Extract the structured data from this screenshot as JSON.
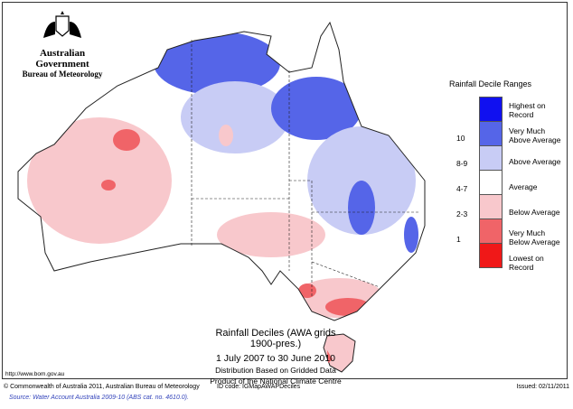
{
  "header": {
    "government": "Australian Government",
    "agency": "Bureau of Meteorology"
  },
  "legend": {
    "title": "Rainfall Decile Ranges",
    "items": [
      {
        "label": "Highest on Record",
        "decile": "",
        "color": "#1010f0"
      },
      {
        "label": "Very Much Above Average",
        "decile": "10",
        "color": "#5565e8"
      },
      {
        "label": "Above Average",
        "decile": "8-9",
        "color": "#c8ccf5"
      },
      {
        "label": "Average",
        "decile": "4-7",
        "color": "#ffffff"
      },
      {
        "label": "Below Average",
        "decile": "2-3",
        "color": "#f8c8cc"
      },
      {
        "label": "Very Much Below Average",
        "decile": "1",
        "color": "#f06468"
      },
      {
        "label": "Lowest on Record",
        "decile": "",
        "color": "#f01818"
      }
    ]
  },
  "map_titles": {
    "title": "Rainfall Deciles (AWA grids 1900-pres.)",
    "period": "1 July 2007 to 30 June 2010",
    "line3": "Distribution Based on Gridded Data",
    "line4": "Product of the National Climate Centre"
  },
  "url": "http://www.bom.gov.au",
  "footer": {
    "copyright": "© Commonwealth of Australia 2011, Australian Bureau of Meteorology",
    "id_code": "ID code: IGMapAWAPDeciles",
    "issued": "Issued: 02/11/2011"
  },
  "source": "Source: Water Account Australia 2009-10 (ABS cat. no. 4610.0)."
}
